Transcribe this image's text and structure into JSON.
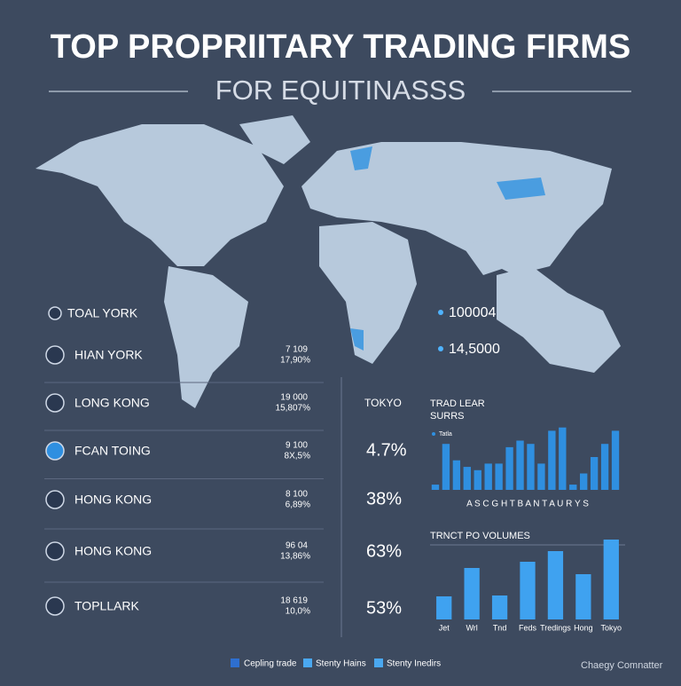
{
  "header": {
    "title": "TOP PROPRIITARY TRADING FIRMS",
    "subtitle": "FOR EQUITINASSS"
  },
  "map_labels": [
    "100004",
    "14,5000"
  ],
  "firms": [
    {
      "name": "TOAL YORK"
    },
    {
      "name": "HIAN YORK",
      "figure": "7 109",
      "share": "17,90%"
    },
    {
      "name": "LONG KONG",
      "figure": "19 000",
      "share": "15,807%"
    },
    {
      "name": "FCAN TOING",
      "figure": "9 100",
      "share": "8X,5%"
    },
    {
      "name": "HONG KONG",
      "figure": "8 100",
      "share": "6,89%"
    },
    {
      "name": "HONG KONG",
      "figure": "96 04",
      "share": "13,86%"
    },
    {
      "name": "TOPLLARK",
      "figure": "18 619",
      "share": "10,0%"
    }
  ],
  "tokyo": {
    "heading": "TOKYO",
    "values": [
      "4.7%",
      "38%",
      "63%",
      "53%"
    ]
  },
  "chart_data": [
    {
      "type": "bar",
      "title": "TRAD LEAR",
      "subtitle": "SURRS",
      "legend_label": "Tatla",
      "x_label": "A S C G H T B A N T A U R Y S",
      "color": "#2f8fe0",
      "ylim": [
        0,
        100
      ],
      "values": [
        8,
        70,
        45,
        35,
        30,
        40,
        40,
        65,
        75,
        70,
        40,
        90,
        95,
        8,
        25,
        50,
        70,
        90
      ]
    },
    {
      "type": "bar",
      "title": "TRNCT PO VOLUMES",
      "color": "#3fa2f0",
      "categories": [
        "Jet",
        "Wrl",
        "Tnd",
        "Feds",
        "Tredings",
        "Hong",
        "Tokyo"
      ],
      "ylim": [
        0,
        100
      ],
      "values": [
        26,
        58,
        27,
        65,
        77,
        51,
        90
      ]
    }
  ],
  "legend": [
    "Cepling trade",
    "Stenty Hains",
    "Stenty Inedirs"
  ],
  "footer": "Chaegy Comnatter"
}
